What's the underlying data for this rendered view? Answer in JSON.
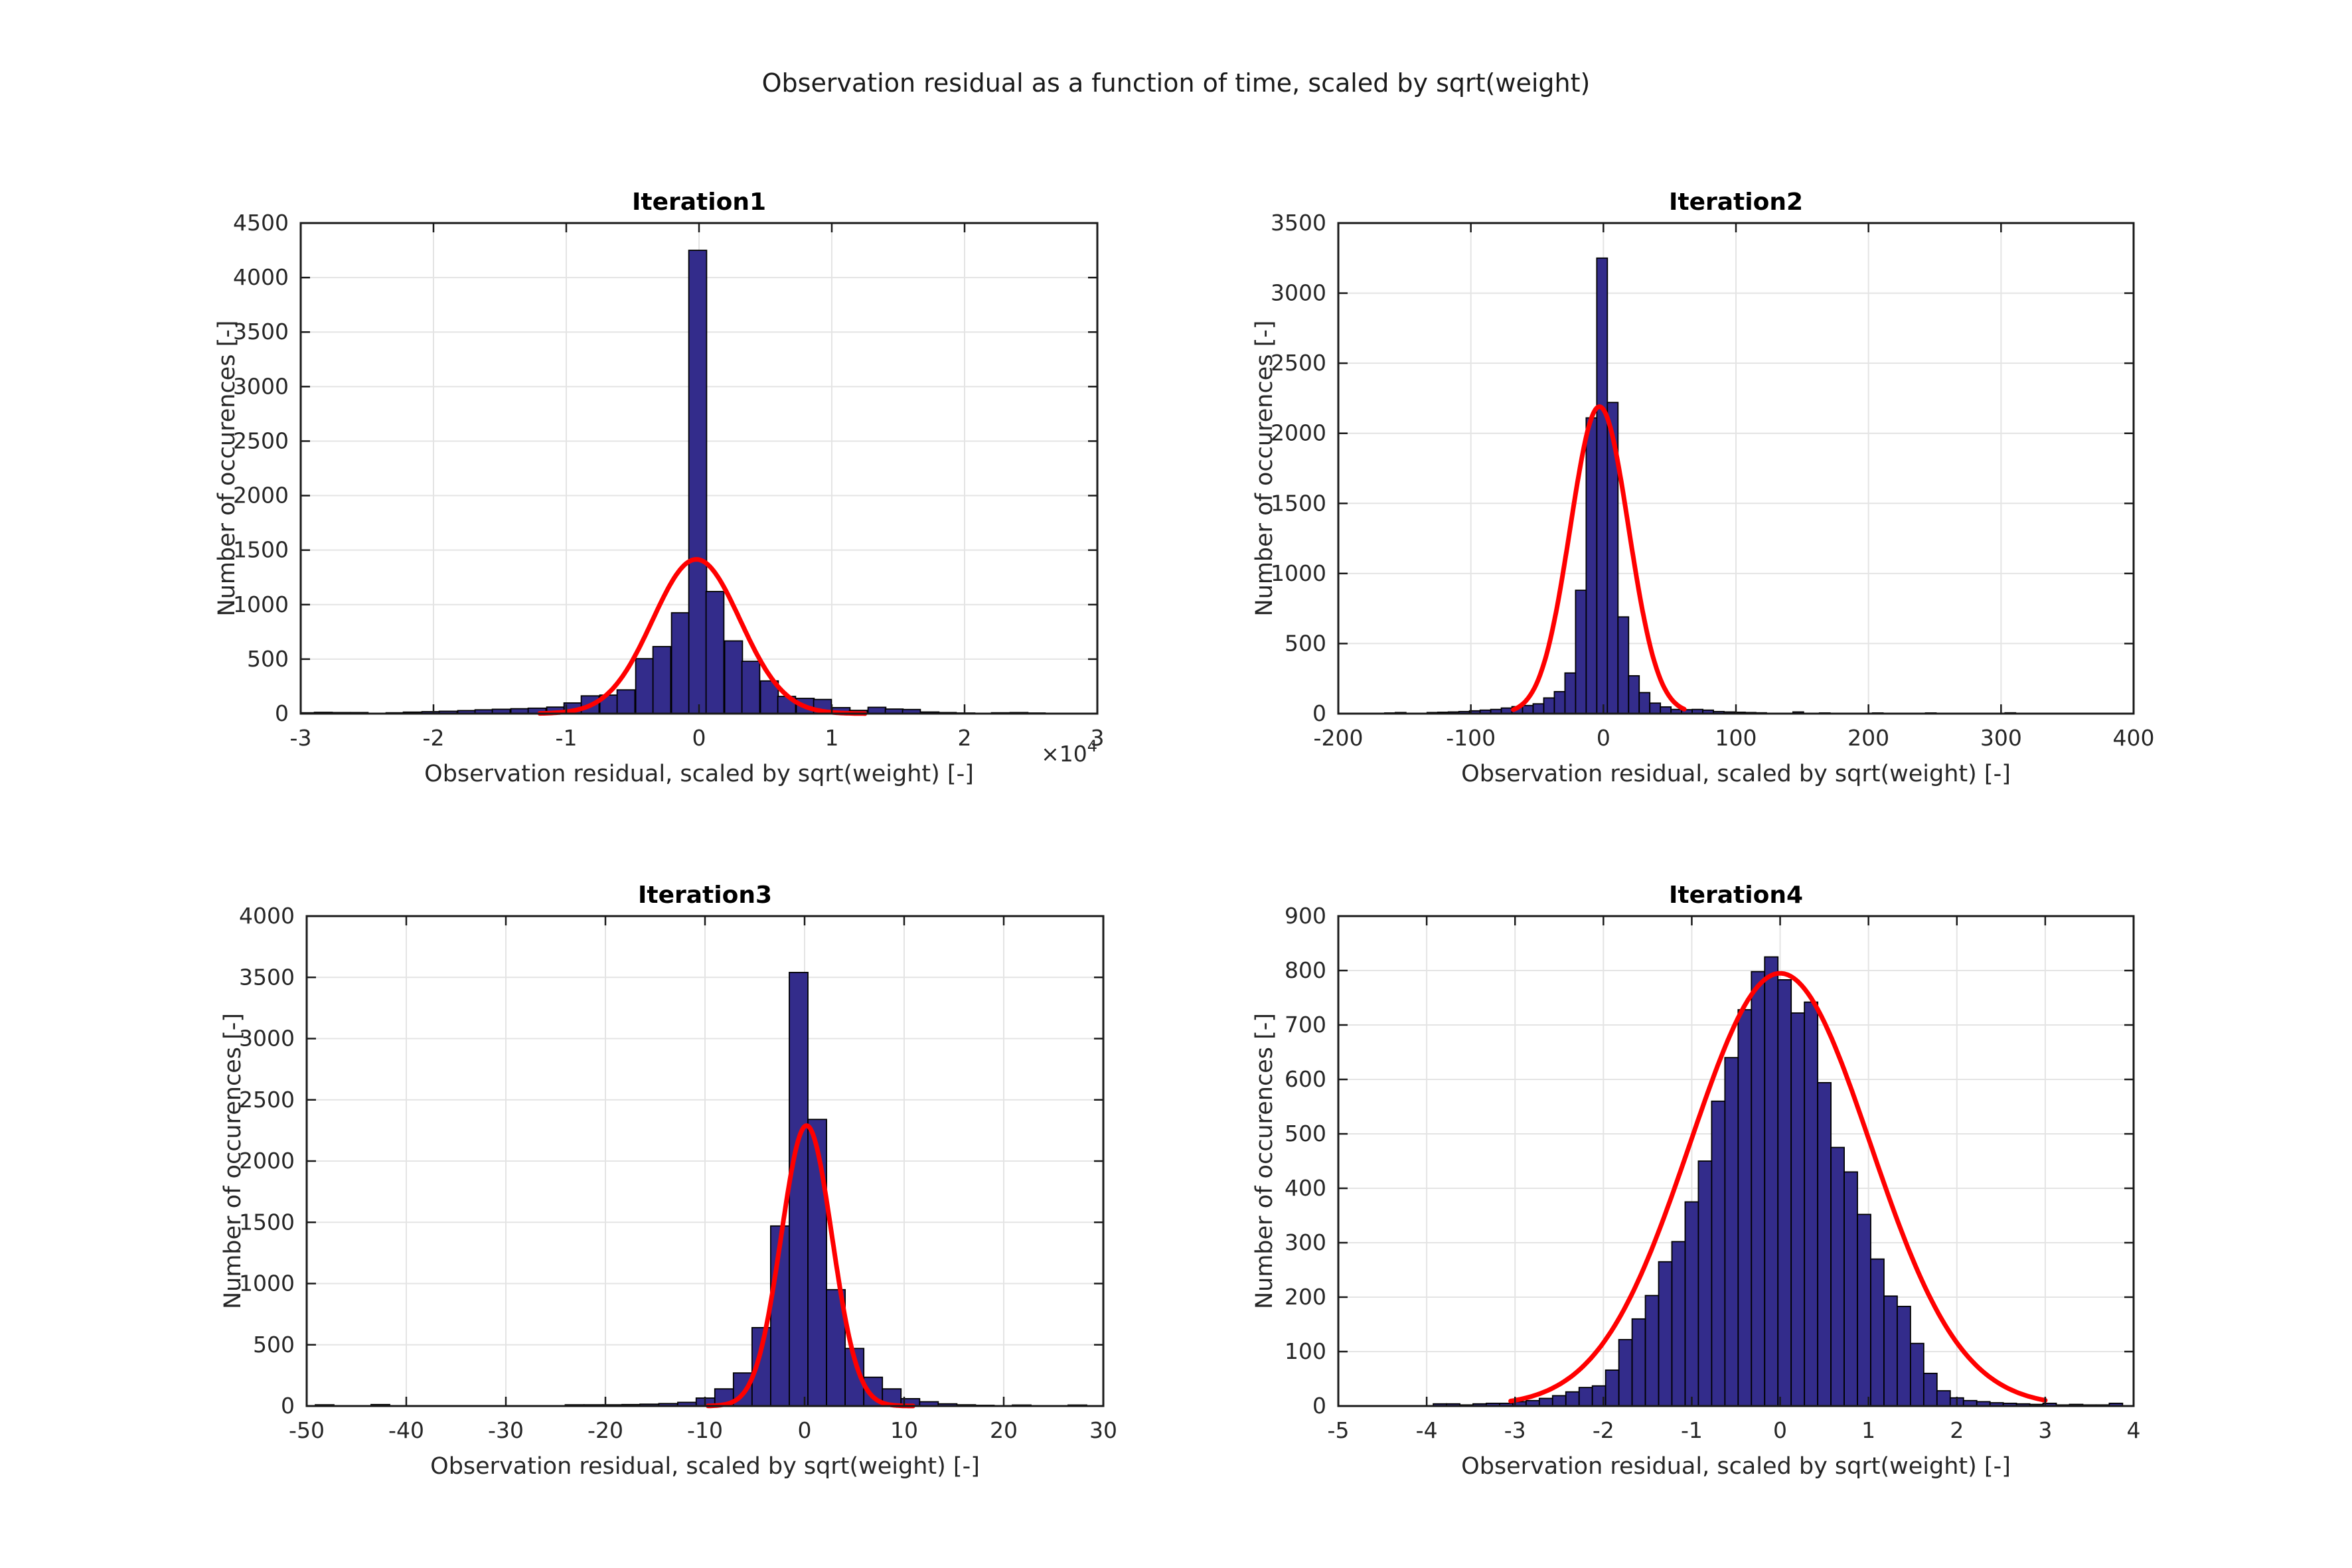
{
  "figure": {
    "title": "Observation residual as a function of time, scaled by sqrt(weight)"
  },
  "style": {
    "background": "#ffffff",
    "bar_color": "#332C8B",
    "bar_edge_color": "#000000",
    "curve_color": "#FF0000",
    "grid_color": "#E4E4E4",
    "axis_color": "#1a1a1a",
    "text_color": "#262626",
    "title_color": "#000000"
  },
  "chart_data": [
    {
      "type": "bar",
      "title": "Iteration1",
      "xlabel": "Observation residual, scaled by sqrt(weight) [-]",
      "ylabel": "Number of occurences [-]",
      "x_offset_label": "×10^4",
      "xlim": [
        -3,
        3
      ],
      "ylim": [
        0,
        4500
      ],
      "xticks": [
        -3,
        -2,
        -1,
        0,
        1,
        2,
        3
      ],
      "yticks": [
        0,
        500,
        1000,
        1500,
        2000,
        2500,
        3000,
        3500,
        4000,
        4500
      ],
      "grid": true,
      "legend_position": "none",
      "bin_width": 0.134,
      "bars": [
        [
          -2.96,
          8
        ],
        [
          -2.83,
          12
        ],
        [
          -2.69,
          10
        ],
        [
          -2.56,
          10
        ],
        [
          -2.29,
          8
        ],
        [
          -2.16,
          14
        ],
        [
          -2.02,
          18
        ],
        [
          -1.89,
          22
        ],
        [
          -1.75,
          28
        ],
        [
          -1.62,
          35
        ],
        [
          -1.49,
          40
        ],
        [
          -1.35,
          45
        ],
        [
          -1.22,
          50
        ],
        [
          -1.08,
          60
        ],
        [
          -0.95,
          98
        ],
        [
          -0.82,
          163
        ],
        [
          -0.68,
          170
        ],
        [
          -0.55,
          218
        ],
        [
          -0.41,
          504
        ],
        [
          -0.28,
          615
        ],
        [
          -0.14,
          925
        ],
        [
          -0.01,
          4250
        ],
        [
          0.12,
          1120
        ],
        [
          0.26,
          667
        ],
        [
          0.39,
          480
        ],
        [
          0.53,
          300
        ],
        [
          0.66,
          158
        ],
        [
          0.8,
          140
        ],
        [
          0.93,
          130
        ],
        [
          1.07,
          55
        ],
        [
          1.2,
          30
        ],
        [
          1.34,
          58
        ],
        [
          1.47,
          42
        ],
        [
          1.6,
          38
        ],
        [
          1.74,
          15
        ],
        [
          1.87,
          10
        ],
        [
          2.01,
          6
        ],
        [
          2.27,
          8
        ],
        [
          2.41,
          10
        ],
        [
          2.54,
          6
        ]
      ],
      "fit_curve": {
        "peak": 1415,
        "mu": -0.02,
        "sigma": 0.33,
        "x_start": -1.2,
        "x_end": 1.25
      }
    },
    {
      "type": "bar",
      "title": "Iteration2",
      "xlabel": "Observation residual, scaled by sqrt(weight) [-]",
      "ylabel": "Number of occurences [-]",
      "x_offset_label": "",
      "xlim": [
        -200,
        400
      ],
      "ylim": [
        0,
        3500
      ],
      "xticks": [
        -200,
        -100,
        0,
        100,
        200,
        300,
        400
      ],
      "yticks": [
        0,
        500,
        1000,
        1500,
        2000,
        2500,
        3000,
        3500
      ],
      "grid": true,
      "legend_position": "none",
      "bin_width": 8,
      "bars": [
        [
          -161,
          5
        ],
        [
          -153,
          8
        ],
        [
          -129,
          8
        ],
        [
          -121,
          10
        ],
        [
          -113,
          12
        ],
        [
          -105,
          15
        ],
        [
          -97,
          20
        ],
        [
          -89,
          25
        ],
        [
          -81,
          30
        ],
        [
          -73,
          40
        ],
        [
          -65,
          50
        ],
        [
          -57,
          58
        ],
        [
          -49,
          70
        ],
        [
          -41,
          112
        ],
        [
          -33,
          157
        ],
        [
          -25,
          290
        ],
        [
          -17,
          880
        ],
        [
          -9,
          2110
        ],
        [
          -1,
          3250
        ],
        [
          7,
          2220
        ],
        [
          15,
          690
        ],
        [
          23,
          270
        ],
        [
          31,
          150
        ],
        [
          39,
          75
        ],
        [
          47,
          48
        ],
        [
          55,
          30
        ],
        [
          63,
          28
        ],
        [
          71,
          30
        ],
        [
          79,
          25
        ],
        [
          87,
          15
        ],
        [
          95,
          12
        ],
        [
          103,
          10
        ],
        [
          111,
          8
        ],
        [
          119,
          6
        ],
        [
          147,
          12
        ],
        [
          167,
          5
        ],
        [
          207,
          5
        ],
        [
          247,
          5
        ],
        [
          307,
          6
        ]
      ],
      "fit_curve": {
        "peak": 2190,
        "mu": -3,
        "sigma": 22,
        "x_start": -68,
        "x_end": 61
      }
    },
    {
      "type": "bar",
      "title": "Iteration3",
      "xlabel": "Observation residual, scaled by sqrt(weight) [-]",
      "ylabel": "Number of occurences [-]",
      "x_offset_label": "",
      "xlim": [
        -50,
        30
      ],
      "ylim": [
        0,
        4000
      ],
      "xticks": [
        -50,
        -40,
        -30,
        -20,
        -10,
        0,
        10,
        20,
        30
      ],
      "yticks": [
        0,
        500,
        1000,
        1500,
        2000,
        2500,
        3000,
        3500,
        4000
      ],
      "grid": true,
      "legend_position": "none",
      "bin_width": 1.87,
      "bars": [
        [
          -48.2,
          10
        ],
        [
          -42.6,
          12
        ],
        [
          -23.1,
          10
        ],
        [
          -21.2,
          10
        ],
        [
          -19.3,
          10
        ],
        [
          -17.4,
          12
        ],
        [
          -15.6,
          15
        ],
        [
          -13.7,
          20
        ],
        [
          -11.8,
          30
        ],
        [
          -9.95,
          65
        ],
        [
          -8.08,
          140
        ],
        [
          -6.21,
          270
        ],
        [
          -4.34,
          640
        ],
        [
          -2.47,
          1470
        ],
        [
          -0.6,
          3540
        ],
        [
          1.27,
          2340
        ],
        [
          3.14,
          950
        ],
        [
          5.01,
          470
        ],
        [
          6.88,
          235
        ],
        [
          8.75,
          140
        ],
        [
          10.62,
          60
        ],
        [
          12.49,
          35
        ],
        [
          14.36,
          18
        ],
        [
          16.23,
          10
        ],
        [
          18.1,
          6
        ],
        [
          21.8,
          8
        ],
        [
          27.4,
          8
        ]
      ],
      "fit_curve": {
        "peak": 2290,
        "mu": 0.2,
        "sigma": 2.55,
        "x_start": -9.7,
        "x_end": 10.9
      }
    },
    {
      "type": "bar",
      "title": "Iteration4",
      "xlabel": "Observation residual, scaled by sqrt(weight) [-]",
      "ylabel": "Number of occurences [-]",
      "x_offset_label": "",
      "xlim": [
        -5,
        4
      ],
      "ylim": [
        0,
        900
      ],
      "xticks": [
        -5,
        -4,
        -3,
        -2,
        -1,
        0,
        1,
        2,
        3,
        4
      ],
      "yticks": [
        0,
        100,
        200,
        300,
        400,
        500,
        600,
        700,
        800,
        900
      ],
      "grid": true,
      "legend_position": "none",
      "bin_width": 0.15,
      "bars": [
        [
          -3.85,
          4
        ],
        [
          -3.7,
          4
        ],
        [
          -3.55,
          2
        ],
        [
          -3.4,
          4
        ],
        [
          -3.25,
          5
        ],
        [
          -3.1,
          5
        ],
        [
          -2.95,
          8
        ],
        [
          -2.8,
          10
        ],
        [
          -2.65,
          14
        ],
        [
          -2.5,
          19
        ],
        [
          -2.35,
          26
        ],
        [
          -2.2,
          34
        ],
        [
          -2.05,
          37
        ],
        [
          -1.9,
          66
        ],
        [
          -1.75,
          122
        ],
        [
          -1.6,
          160
        ],
        [
          -1.45,
          203
        ],
        [
          -1.3,
          265
        ],
        [
          -1.15,
          302
        ],
        [
          -1.0,
          375
        ],
        [
          -0.85,
          450
        ],
        [
          -0.7,
          560
        ],
        [
          -0.55,
          640
        ],
        [
          -0.4,
          728
        ],
        [
          -0.25,
          798
        ],
        [
          -0.1,
          825
        ],
        [
          0.05,
          783
        ],
        [
          0.2,
          722
        ],
        [
          0.35,
          742
        ],
        [
          0.5,
          594
        ],
        [
          0.65,
          475
        ],
        [
          0.8,
          430
        ],
        [
          0.95,
          352
        ],
        [
          1.1,
          270
        ],
        [
          1.25,
          202
        ],
        [
          1.4,
          183
        ],
        [
          1.55,
          115
        ],
        [
          1.7,
          60
        ],
        [
          1.85,
          28
        ],
        [
          2.0,
          15
        ],
        [
          2.15,
          10
        ],
        [
          2.3,
          8
        ],
        [
          2.45,
          6
        ],
        [
          2.6,
          5
        ],
        [
          2.75,
          4
        ],
        [
          2.9,
          3
        ],
        [
          3.05,
          5
        ],
        [
          3.2,
          2
        ],
        [
          3.35,
          3
        ],
        [
          3.5,
          2
        ],
        [
          3.65,
          2
        ],
        [
          3.8,
          5
        ]
      ],
      "fit_curve": {
        "peak": 795,
        "mu": 0,
        "sigma": 1.02,
        "x_start": -3.05,
        "x_end": 3.0
      }
    }
  ]
}
